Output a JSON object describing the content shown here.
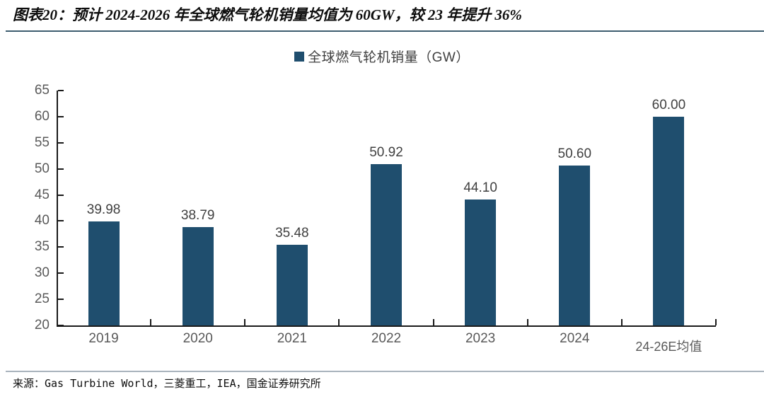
{
  "figure": {
    "title": "图表20：预计 2024-2026 年全球燃气轮机销量均值为 60GW，较 23 年提升 36%"
  },
  "legend": {
    "label": "全球燃气轮机销量（GW）"
  },
  "chart_data": {
    "type": "bar",
    "title": "预计 2024-2026 年全球燃气轮机销量均值为 60GW，较 23 年提升 36%",
    "series_name": "全球燃气轮机销量（GW）",
    "categories": [
      "2019",
      "2020",
      "2021",
      "2022",
      "2023",
      "2024",
      "24-26E均值"
    ],
    "values": [
      39.98,
      38.79,
      35.48,
      50.92,
      44.1,
      50.6,
      60.0
    ],
    "value_labels": [
      "39.98",
      "38.79",
      "35.48",
      "50.92",
      "44.10",
      "50.60",
      "60.00"
    ],
    "xlabel": "",
    "ylabel": "",
    "ylim": [
      20,
      65
    ],
    "ytick_step": 5,
    "grid": false,
    "legend_position": "top-center",
    "bar_color": "#1F4E6E"
  },
  "colors": {
    "bar": "#1F4E6E",
    "axis": "#1a1a1a",
    "tick_label": "#595959",
    "value_label": "#404040",
    "title_underline": "#3d5d6f",
    "footer_divider": "#a9b3bd"
  },
  "footer": {
    "source": "来源：Gas Turbine World，三菱重工，IEA，国金证券研究所"
  }
}
